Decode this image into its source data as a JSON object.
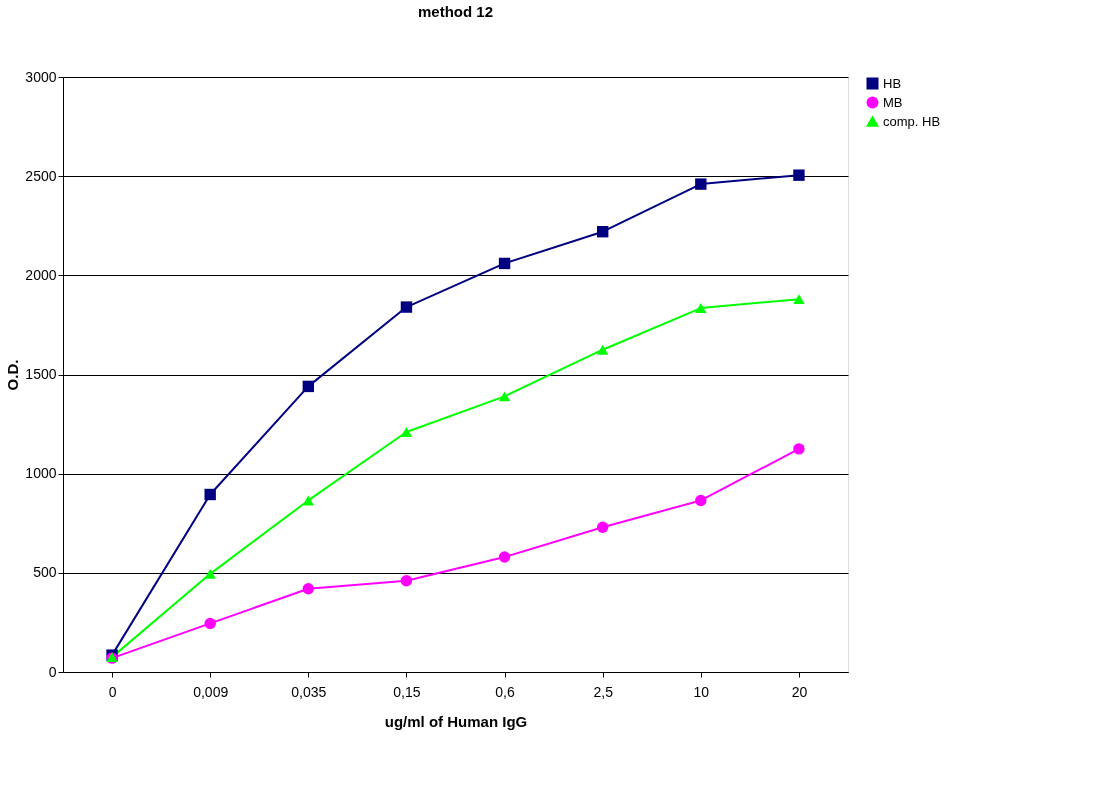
{
  "chart_data": {
    "type": "line",
    "title": "method 12",
    "xlabel": "ug/ml of Human IgG",
    "ylabel": "O.D.",
    "categories": [
      "0",
      "0,009",
      "0,035",
      "0,15",
      "0,6",
      "2,5",
      "10",
      "20"
    ],
    "series": [
      {
        "name": "HB",
        "color": "#000080",
        "marker": "square",
        "values": [
          85,
          895,
          1440,
          1840,
          2060,
          2220,
          2460,
          2505
        ]
      },
      {
        "name": "MB",
        "color": "#ff00ff",
        "marker": "circle",
        "values": [
          70,
          245,
          420,
          460,
          580,
          730,
          865,
          1125
        ]
      },
      {
        "name": "comp. HB",
        "color": "#00ff00",
        "marker": "triangle",
        "values": [
          75,
          495,
          865,
          1210,
          1390,
          1625,
          1835,
          1880
        ]
      }
    ],
    "ylim": [
      0,
      3000
    ],
    "yticks": [
      0,
      500,
      1000,
      1500,
      2000,
      2500,
      3000
    ],
    "grid": "y",
    "legend": "right",
    "line_style": "solid"
  }
}
